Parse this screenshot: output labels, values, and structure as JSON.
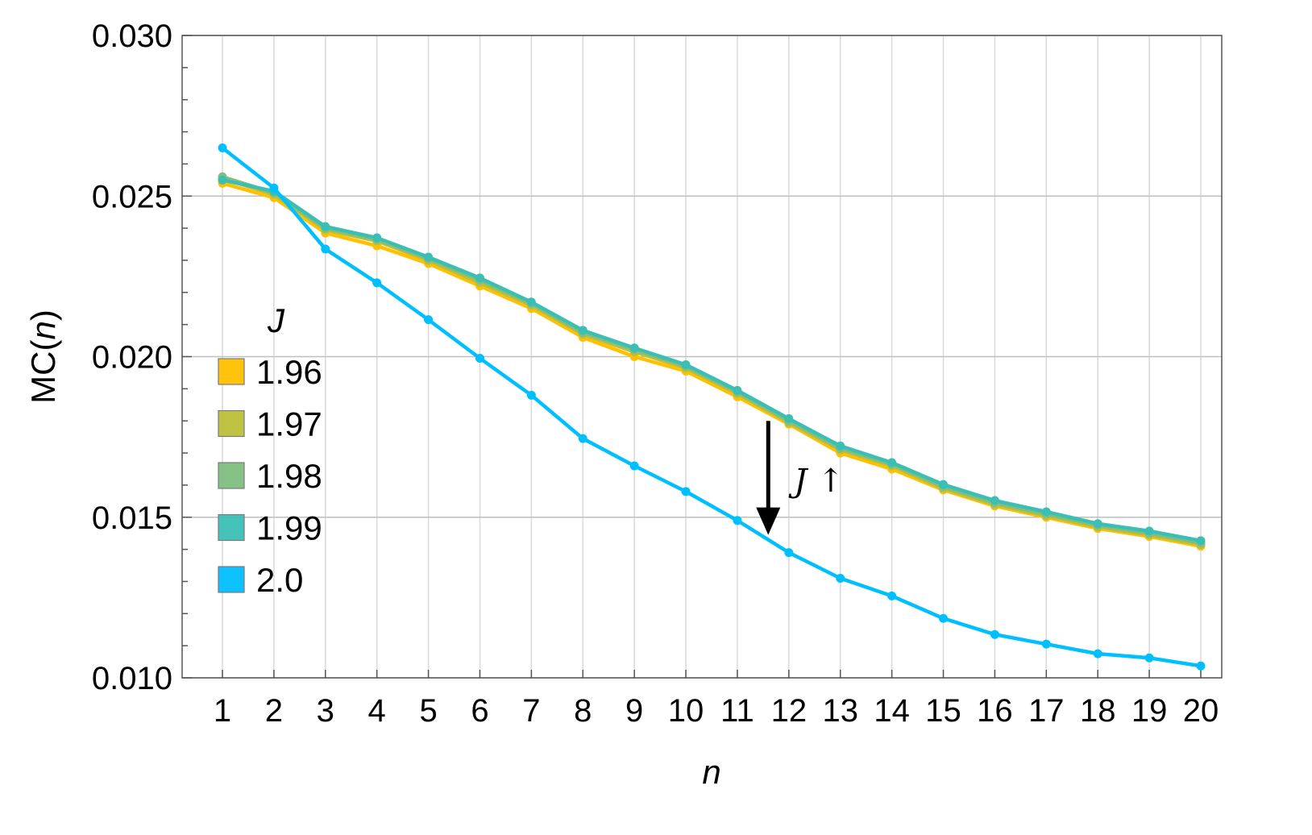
{
  "chart_data": {
    "type": "line",
    "xlabel": "n",
    "ylabel": "MC(n)",
    "ylabel_prefix": "MC(",
    "ylabel_var": "n",
    "ylabel_suffix": ")",
    "xlim": [
      1,
      20
    ],
    "ylim": [
      0.01,
      0.03
    ],
    "x": [
      1,
      2,
      3,
      4,
      5,
      6,
      7,
      8,
      9,
      10,
      11,
      12,
      13,
      14,
      15,
      16,
      17,
      18,
      19,
      20
    ],
    "x_tick_labels": [
      "1",
      "2",
      "3",
      "4",
      "5",
      "6",
      "7",
      "8",
      "9",
      "10",
      "11",
      "12",
      "13",
      "14",
      "15",
      "16",
      "17",
      "18",
      "19",
      "20"
    ],
    "y_tick_values": [
      0.01,
      0.015,
      0.02,
      0.025,
      0.03
    ],
    "y_tick_labels": [
      "0.010",
      "0.015",
      "0.020",
      "0.025",
      "0.030"
    ],
    "grid": true,
    "legend_title": "J",
    "legend_placement": "left",
    "series": [
      {
        "name": "1.96",
        "color": "#FFC000",
        "values": [
          0.0254,
          0.02495,
          0.02385,
          0.02345,
          0.0229,
          0.0222,
          0.0215,
          0.0206,
          0.02,
          0.01955,
          0.01875,
          0.0179,
          0.017,
          0.0165,
          0.01585,
          0.01535,
          0.015,
          0.01465,
          0.0144,
          0.0141
        ]
      },
      {
        "name": "1.97",
        "color": "#BDBF3A",
        "values": [
          0.02555,
          0.02505,
          0.02395,
          0.0236,
          0.023,
          0.0223,
          0.0216,
          0.0207,
          0.02015,
          0.01965,
          0.01885,
          0.01795,
          0.0171,
          0.0166,
          0.0159,
          0.0154,
          0.01505,
          0.0147,
          0.01445,
          0.01415
        ]
      },
      {
        "name": "1.98",
        "color": "#7FBF7F",
        "values": [
          0.0256,
          0.0251,
          0.024,
          0.02365,
          0.02305,
          0.02238,
          0.02165,
          0.02075,
          0.02022,
          0.0197,
          0.0189,
          0.018,
          0.01715,
          0.01665,
          0.01595,
          0.01545,
          0.0151,
          0.01475,
          0.0145,
          0.0142
        ]
      },
      {
        "name": "1.99",
        "color": "#3BBFB5",
        "values": [
          0.0255,
          0.02515,
          0.02405,
          0.0237,
          0.0231,
          0.02245,
          0.0217,
          0.02082,
          0.02027,
          0.01975,
          0.01895,
          0.01807,
          0.01722,
          0.0167,
          0.01602,
          0.01552,
          0.01517,
          0.0148,
          0.01457,
          0.01427
        ]
      },
      {
        "name": "2.0",
        "color": "#00BFFF",
        "values": [
          0.0265,
          0.02525,
          0.02335,
          0.0223,
          0.02115,
          0.01995,
          0.0188,
          0.01745,
          0.0166,
          0.0158,
          0.0149,
          0.0139,
          0.0131,
          0.01255,
          0.01185,
          0.01135,
          0.01105,
          0.01075,
          0.01062,
          0.01037
        ]
      }
    ],
    "annotation": {
      "text": "J ↑",
      "arrow_x": 11.6,
      "arrow_y_from": 0.018,
      "arrow_y_to": 0.0145
    }
  }
}
